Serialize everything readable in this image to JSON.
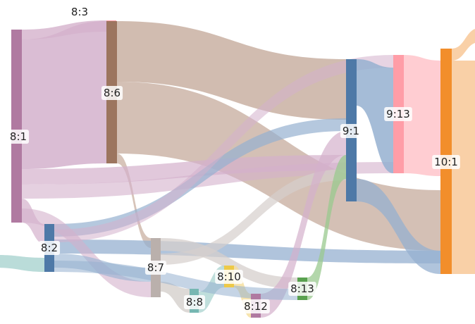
{
  "diagram": {
    "type": "sankey",
    "nodes": [
      {
        "id": "8:1",
        "label": "8:1",
        "color": "#b07aa1"
      },
      {
        "id": "8:3",
        "label": "8:3",
        "color": "#ff9da7"
      },
      {
        "id": "8:6",
        "label": "8:6",
        "color": "#9c755f"
      },
      {
        "id": "8:2",
        "label": "8:2",
        "color": "#4e79a7"
      },
      {
        "id": "8:7",
        "label": "8:7",
        "color": "#bab0ac"
      },
      {
        "id": "8:8",
        "label": "8:8",
        "color": "#76b7b2"
      },
      {
        "id": "8:10",
        "label": "8:10",
        "color": "#edc948"
      },
      {
        "id": "8:12",
        "label": "8:12",
        "color": "#b07aa1"
      },
      {
        "id": "8:13",
        "label": "8:13",
        "color": "#59a14f"
      },
      {
        "id": "9:1",
        "label": "9:1",
        "color": "#4e79a7"
      },
      {
        "id": "9:13",
        "label": "9:13",
        "color": "#ff9da7"
      },
      {
        "id": "10:1",
        "label": "10:1",
        "color": "#f28e2b"
      }
    ],
    "link_colors": {
      "tan": "#c9b0a2",
      "mauve": "#d4b1cc",
      "steel": "#95b0d0",
      "pink": "#ffc4ca",
      "peach": "#f8c898",
      "yellow": "#f5dd9a",
      "green": "#99c98f",
      "teal": "#a9d3cf",
      "grey": "#d5cfcc"
    }
  }
}
